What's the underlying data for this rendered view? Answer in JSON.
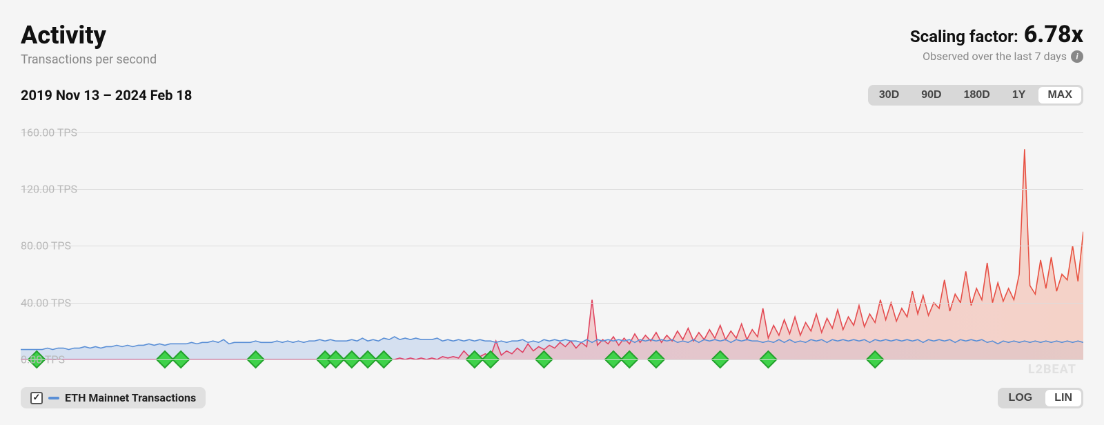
{
  "header": {
    "title": "Activity",
    "subtitle": "Transactions per second",
    "scaling_label": "Scaling factor:",
    "scaling_value": "6.78x",
    "observed_text": "Observed over the last 7 days"
  },
  "controls": {
    "date_range": "2019 Nov 13 – 2024 Feb 18",
    "range_options": [
      "30D",
      "90D",
      "180D",
      "1Y",
      "MAX"
    ],
    "range_selected": "MAX",
    "scale_options": [
      "LOG",
      "LIN"
    ],
    "scale_selected": "LIN"
  },
  "legend": {
    "checked": true,
    "swatch_color": "#5a8fd6",
    "label": "ETH Mainnet Transactions"
  },
  "watermark": "L2BEAT",
  "chart": {
    "type": "area-line",
    "background_color": "#f5f5f5",
    "grid_color": "#dcdcdc",
    "ylabel_color": "#b8b8b8",
    "ylabel_fontsize": 16,
    "ylim": [
      0,
      170
    ],
    "yticks": [
      0,
      40,
      80,
      120,
      160
    ],
    "ytick_labels": [
      "0.00 TPS",
      "40.00 TPS",
      "80.00 TPS",
      "120.00 TPS",
      "160.00 TPS"
    ],
    "x_count": 200,
    "series": [
      {
        "name": "eth-mainnet",
        "stroke": "#5a8fd6",
        "fill": "#b9cdeb",
        "fill_opacity": 0.55,
        "stroke_width": 1.6,
        "values": [
          7,
          7,
          7,
          7,
          7,
          8,
          7,
          8,
          8,
          7,
          8,
          8,
          9,
          8,
          9,
          8,
          9,
          9,
          10,
          9,
          10,
          9,
          10,
          10,
          11,
          10,
          11,
          10,
          11,
          11,
          11,
          11,
          12,
          11,
          12,
          12,
          13,
          12,
          14,
          11,
          12,
          12,
          12,
          12,
          13,
          12,
          12,
          12,
          13,
          12,
          13,
          12,
          13,
          12,
          13,
          13,
          14,
          13,
          14,
          13,
          13,
          13,
          14,
          13,
          15,
          13,
          14,
          13,
          15,
          14,
          16,
          14,
          15,
          14,
          15,
          14,
          14,
          14,
          15,
          13,
          14,
          13,
          14,
          13,
          14,
          13,
          14,
          13,
          13,
          12,
          13,
          12,
          13,
          13,
          14,
          12,
          13,
          12,
          14,
          13,
          14,
          13,
          14,
          13,
          13,
          12,
          14,
          12,
          14,
          13,
          14,
          13,
          14,
          13,
          14,
          12,
          14,
          13,
          14,
          13,
          14,
          13,
          14,
          12,
          13,
          12,
          14,
          12,
          14,
          13,
          14,
          13,
          14,
          12,
          14,
          13,
          14,
          13,
          13,
          12,
          13,
          12,
          14,
          12,
          14,
          12,
          13,
          12,
          14,
          13,
          14,
          12,
          14,
          13,
          14,
          13,
          14,
          13,
          14,
          12,
          14,
          13,
          14,
          13,
          14,
          13,
          14,
          13,
          14,
          12,
          14,
          13,
          14,
          13,
          14,
          12,
          14,
          13,
          14,
          13,
          14,
          12,
          13,
          11,
          13,
          12,
          13,
          12,
          13,
          12,
          13,
          12,
          13,
          12,
          13,
          12,
          13,
          12,
          13,
          12
        ]
      },
      {
        "name": "l2-combined",
        "stroke_gradient": [
          "#d63384",
          "#e8523f"
        ],
        "fill_gradient": [
          "#e9a5c4",
          "#f3b6a3"
        ],
        "fill_opacity": 0.55,
        "stroke_width": 1.6,
        "values": [
          0,
          0,
          0,
          0,
          0,
          0,
          0,
          0,
          0,
          0,
          0,
          0,
          0,
          0,
          0,
          0,
          0,
          0,
          0,
          0,
          0,
          0,
          0,
          0,
          0,
          0,
          0,
          0,
          0,
          0,
          0,
          0,
          0,
          0,
          0,
          0,
          0,
          0,
          0,
          0,
          0,
          0,
          0,
          0,
          0,
          0,
          0,
          0,
          0,
          0,
          0,
          0,
          0,
          0,
          0,
          0,
          0,
          0,
          0,
          0,
          0,
          0,
          0,
          0,
          0,
          0,
          0,
          0,
          0,
          0,
          0,
          1,
          0,
          1,
          0,
          1,
          0,
          1,
          0,
          2,
          1,
          2,
          1,
          6,
          2,
          3,
          2,
          4,
          2,
          13,
          3,
          6,
          4,
          8,
          5,
          11,
          6,
          9,
          7,
          10,
          8,
          12,
          9,
          13,
          8,
          12,
          9,
          42,
          10,
          14,
          11,
          16,
          10,
          15,
          11,
          18,
          12,
          17,
          13,
          19,
          12,
          17,
          13,
          20,
          14,
          22,
          13,
          19,
          14,
          21,
          15,
          24,
          14,
          20,
          15,
          25,
          14,
          21,
          16,
          36,
          15,
          24,
          17,
          28,
          18,
          30,
          17,
          26,
          20,
          32,
          19,
          29,
          22,
          35,
          21,
          30,
          24,
          38,
          23,
          32,
          26,
          42,
          28,
          40,
          27,
          36,
          30,
          48,
          32,
          45,
          31,
          40,
          36,
          56,
          34,
          46,
          40,
          62,
          38,
          50,
          42,
          68,
          40,
          54,
          41,
          50,
          42,
          60,
          148,
          52,
          46,
          70,
          50,
          72,
          48,
          60,
          56,
          80,
          55,
          90
        ]
      }
    ],
    "markers": {
      "shape": "diamond",
      "fill": "#3fd24a",
      "stroke": "#23a02c",
      "size": 12,
      "x_positions": [
        3,
        27,
        30,
        44,
        57,
        59,
        62,
        65,
        68,
        85,
        88,
        98,
        111,
        114,
        119,
        131,
        140,
        160
      ]
    }
  }
}
